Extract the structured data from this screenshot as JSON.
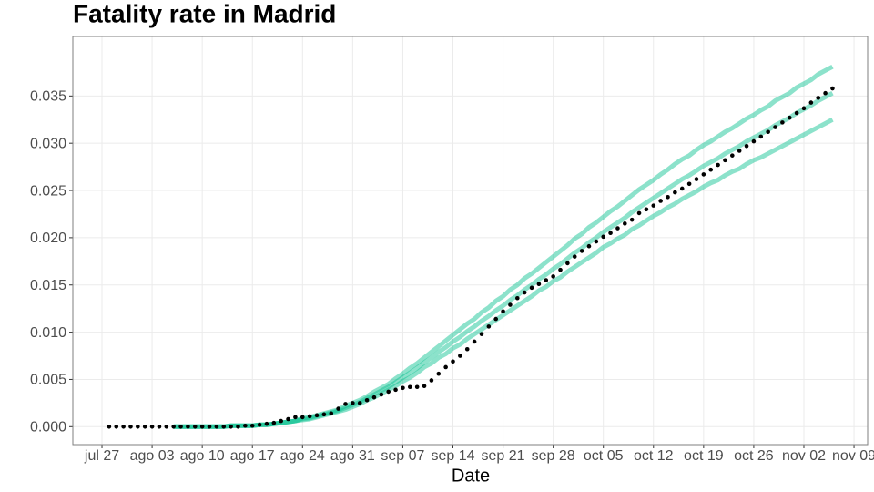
{
  "chart_data": {
    "type": "line",
    "title": "Fatality rate in  Madrid",
    "xlabel": "Date",
    "categories": [
      "jul 27",
      null,
      null,
      null,
      null,
      null,
      null,
      "ago 03",
      null,
      null,
      null,
      null,
      null,
      null,
      "ago 10",
      null,
      null,
      null,
      null,
      null,
      null,
      "ago 17",
      null,
      null,
      null,
      null,
      null,
      null,
      "ago 24",
      null,
      null,
      null,
      null,
      null,
      null,
      "ago 31",
      null,
      null,
      null,
      null,
      null,
      null,
      "sep 07",
      null,
      null,
      null,
      null,
      null,
      null,
      "sep 14",
      null,
      null,
      null,
      null,
      null,
      null,
      "sep 21",
      null,
      null,
      null,
      null,
      null,
      null,
      "sep 28",
      null,
      null,
      null,
      null,
      null,
      null,
      "oct 05",
      null,
      null,
      null,
      null,
      null,
      null,
      "oct 12",
      null,
      null,
      null,
      null,
      null,
      null,
      "oct 19",
      null,
      null,
      null,
      null,
      null,
      null,
      "oct 26",
      null,
      null,
      null,
      null,
      null,
      null,
      "nov 02",
      null,
      null,
      null,
      null,
      null,
      null,
      "nov 09"
    ],
    "series": [
      {
        "color": "#00be8c",
        "mode": "lines",
        "values": [
          null,
          null,
          null,
          null,
          null,
          null,
          null,
          null,
          null,
          null,
          0,
          0,
          0,
          0,
          0,
          0,
          0,
          0,
          0.0001,
          0.0001,
          0.0001,
          0.0001,
          0.0002,
          0.0002,
          0.0003,
          0.0004,
          0.0005,
          0.0006,
          0.0007,
          0.0008,
          0.001,
          0.0012,
          0.0014,
          0.0016,
          0.0018,
          0.0021,
          0.0024,
          0.0028,
          0.0031,
          0.0035,
          0.0039,
          0.0043,
          0.0048,
          0.0052,
          0.0057,
          0.0063,
          0.0067,
          0.0073,
          0.0077,
          0.0083,
          0.0087,
          0.0093,
          0.0098,
          0.0103,
          0.0108,
          0.0113,
          0.0118,
          0.0123,
          0.0128,
          0.0133,
          0.0138,
          0.0144,
          0.0148,
          0.0154,
          0.0158,
          0.0164,
          0.0169,
          0.0174,
          0.0179,
          0.0184,
          0.019,
          0.0194,
          0.0199,
          0.0203,
          0.0209,
          0.0213,
          0.0218,
          0.0223,
          0.0227,
          0.0232,
          0.0236,
          0.0241,
          0.0245,
          0.0249,
          0.0254,
          0.0258,
          0.0261,
          0.0266,
          0.027,
          0.0273,
          0.0278,
          0.0282,
          0.0285,
          0.0289,
          0.0293,
          0.0297,
          0.0301,
          0.0305,
          0.0309,
          0.0313,
          0.0317,
          0.0321,
          0.0325,
          null,
          null,
          null
        ]
      },
      {
        "color": "#00be8c",
        "mode": "lines",
        "values": [
          null,
          null,
          null,
          null,
          null,
          null,
          null,
          null,
          null,
          null,
          0,
          0,
          0,
          0,
          0,
          0,
          0,
          0,
          0.0001,
          0.0001,
          0.0001,
          0.0001,
          0.0002,
          0.0002,
          0.0003,
          0.0004,
          0.0005,
          0.0006,
          0.0008,
          0.0009,
          0.0011,
          0.0013,
          0.0015,
          0.0017,
          0.002,
          0.0023,
          0.0026,
          0.003,
          0.0034,
          0.0038,
          0.0042,
          0.0047,
          0.0052,
          0.0057,
          0.0062,
          0.0068,
          0.0073,
          0.0079,
          0.0084,
          0.009,
          0.0095,
          0.0101,
          0.0106,
          0.0112,
          0.0117,
          0.0123,
          0.0128,
          0.0134,
          0.0139,
          0.0145,
          0.015,
          0.0156,
          0.0161,
          0.0167,
          0.0172,
          0.0178,
          0.0184,
          0.0189,
          0.0195,
          0.02,
          0.0206,
          0.0211,
          0.0216,
          0.0221,
          0.0227,
          0.0232,
          0.0237,
          0.0242,
          0.0247,
          0.0252,
          0.0257,
          0.0262,
          0.0266,
          0.0271,
          0.0276,
          0.028,
          0.0284,
          0.0289,
          0.0293,
          0.0297,
          0.0302,
          0.0306,
          0.031,
          0.0314,
          0.0319,
          0.0323,
          0.0327,
          0.0332,
          0.0336,
          0.034,
          0.0345,
          0.0349,
          0.0353,
          null,
          null,
          null
        ]
      },
      {
        "color": "#00be8c",
        "mode": "lines",
        "values": [
          null,
          null,
          null,
          null,
          null,
          null,
          null,
          null,
          null,
          null,
          0,
          0,
          0,
          0,
          0,
          0,
          0,
          0,
          0.0001,
          0.0001,
          0.0001,
          0.0001,
          0.0002,
          0.0002,
          0.0003,
          0.0004,
          0.0005,
          0.0006,
          0.0009,
          0.001,
          0.0012,
          0.0014,
          0.0016,
          0.0018,
          0.0022,
          0.0025,
          0.0028,
          0.0032,
          0.0037,
          0.0041,
          0.0045,
          0.0051,
          0.0056,
          0.0062,
          0.0067,
          0.0073,
          0.0079,
          0.0085,
          0.0091,
          0.0097,
          0.0103,
          0.0109,
          0.0114,
          0.0121,
          0.0126,
          0.0133,
          0.0138,
          0.0145,
          0.015,
          0.0157,
          0.0162,
          0.0168,
          0.0174,
          0.018,
          0.0186,
          0.0192,
          0.0199,
          0.0204,
          0.0211,
          0.0216,
          0.0222,
          0.0228,
          0.0233,
          0.0239,
          0.0245,
          0.0251,
          0.0256,
          0.0261,
          0.0267,
          0.0272,
          0.0278,
          0.0283,
          0.0287,
          0.0293,
          0.0298,
          0.0302,
          0.0307,
          0.0312,
          0.0316,
          0.0321,
          0.0326,
          0.033,
          0.0335,
          0.0339,
          0.0345,
          0.0349,
          0.0353,
          0.0359,
          0.0363,
          0.0367,
          0.0373,
          0.0377,
          0.0381,
          null,
          null,
          null
        ]
      },
      {
        "color": "#000000",
        "mode": "points",
        "values": [
          null,
          0,
          0,
          0,
          0,
          0,
          0,
          0,
          0,
          0,
          0,
          0,
          0,
          0,
          0,
          0,
          0,
          0,
          0,
          0,
          0.0001,
          0.0001,
          0.0002,
          0.0003,
          0.0004,
          0.0006,
          0.0008,
          0.001,
          0.001,
          0.0011,
          0.0012,
          0.0013,
          0.0014,
          0.0019,
          0.0024,
          0.0025,
          0.0025,
          0.0028,
          0.0031,
          0.0034,
          0.0037,
          0.0039,
          0.0041,
          0.0042,
          0.0042,
          0.0043,
          0.0049,
          0.0056,
          0.0063,
          0.0069,
          0.0075,
          0.0082,
          0.009,
          0.0098,
          0.0106,
          0.0114,
          0.0122,
          0.0129,
          0.0136,
          0.0142,
          0.0147,
          0.0151,
          0.0155,
          0.0159,
          0.0166,
          0.0173,
          0.018,
          0.0186,
          0.0191,
          0.0196,
          0.0201,
          0.0205,
          0.021,
          0.0215,
          0.0219,
          0.0226,
          0.023,
          0.0234,
          0.0239,
          0.0243,
          0.0248,
          0.0252,
          0.0257,
          0.0262,
          0.0267,
          0.0272,
          0.0277,
          0.0282,
          0.0287,
          0.0292,
          0.0297,
          0.0302,
          0.0307,
          0.0312,
          0.0317,
          0.0322,
          0.0327,
          0.0332,
          0.0337,
          0.0343,
          0.0348,
          0.0353,
          0.0358,
          null,
          null,
          null
        ]
      }
    ],
    "ylim": [
      -0.0019,
      0.0413
    ],
    "yticks": [
      {
        "value": 0,
        "label": "0.000"
      },
      {
        "value": 0.005,
        "label": "0.005"
      },
      {
        "value": 0.01,
        "label": "0.010"
      },
      {
        "value": 0.015,
        "label": "0.015"
      },
      {
        "value": 0.02,
        "label": "0.020"
      },
      {
        "value": 0.025,
        "label": "0.025"
      },
      {
        "value": 0.03,
        "label": "0.030"
      },
      {
        "value": 0.035,
        "label": "0.035"
      }
    ],
    "grid": true
  }
}
